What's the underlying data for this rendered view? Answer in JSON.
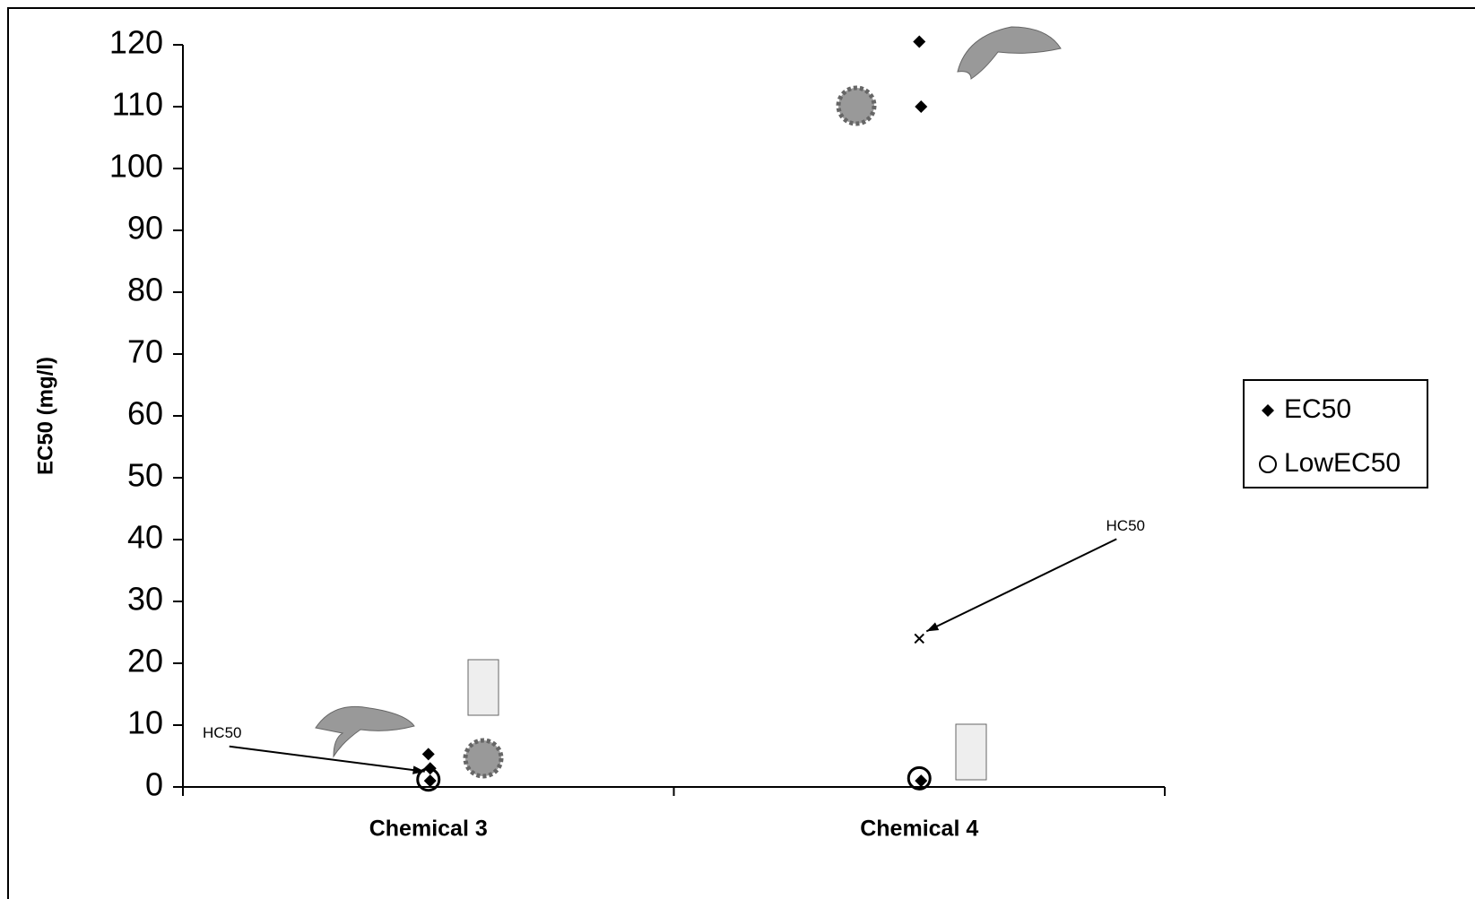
{
  "chart_data": {
    "type": "scatter",
    "y_label": "EC50 (mg/l)",
    "categories": [
      "Chemical 3",
      "Chemical 4"
    ],
    "series": [
      {
        "name": "EC50",
        "color": "#000000",
        "marker": "diamond",
        "values": [
          [
            5.3,
            3,
            1
          ],
          [
            120.5,
            110,
            1
          ]
        ]
      },
      {
        "name": "LowEC50",
        "color": "#000000",
        "marker": "circle",
        "values": [
          [
            1.2
          ],
          [
            1.4
          ]
        ]
      }
    ],
    "annotations": [
      {
        "text": "HC50",
        "category": 0,
        "value": 2.5
      },
      {
        "text": "HC50",
        "category": 1,
        "value": 24
      }
    ],
    "ylim": [
      0,
      120
    ],
    "yticks": [
      0,
      10,
      20,
      30,
      40,
      50,
      60,
      70,
      80,
      90,
      100,
      110,
      120
    ],
    "legend": "right"
  }
}
